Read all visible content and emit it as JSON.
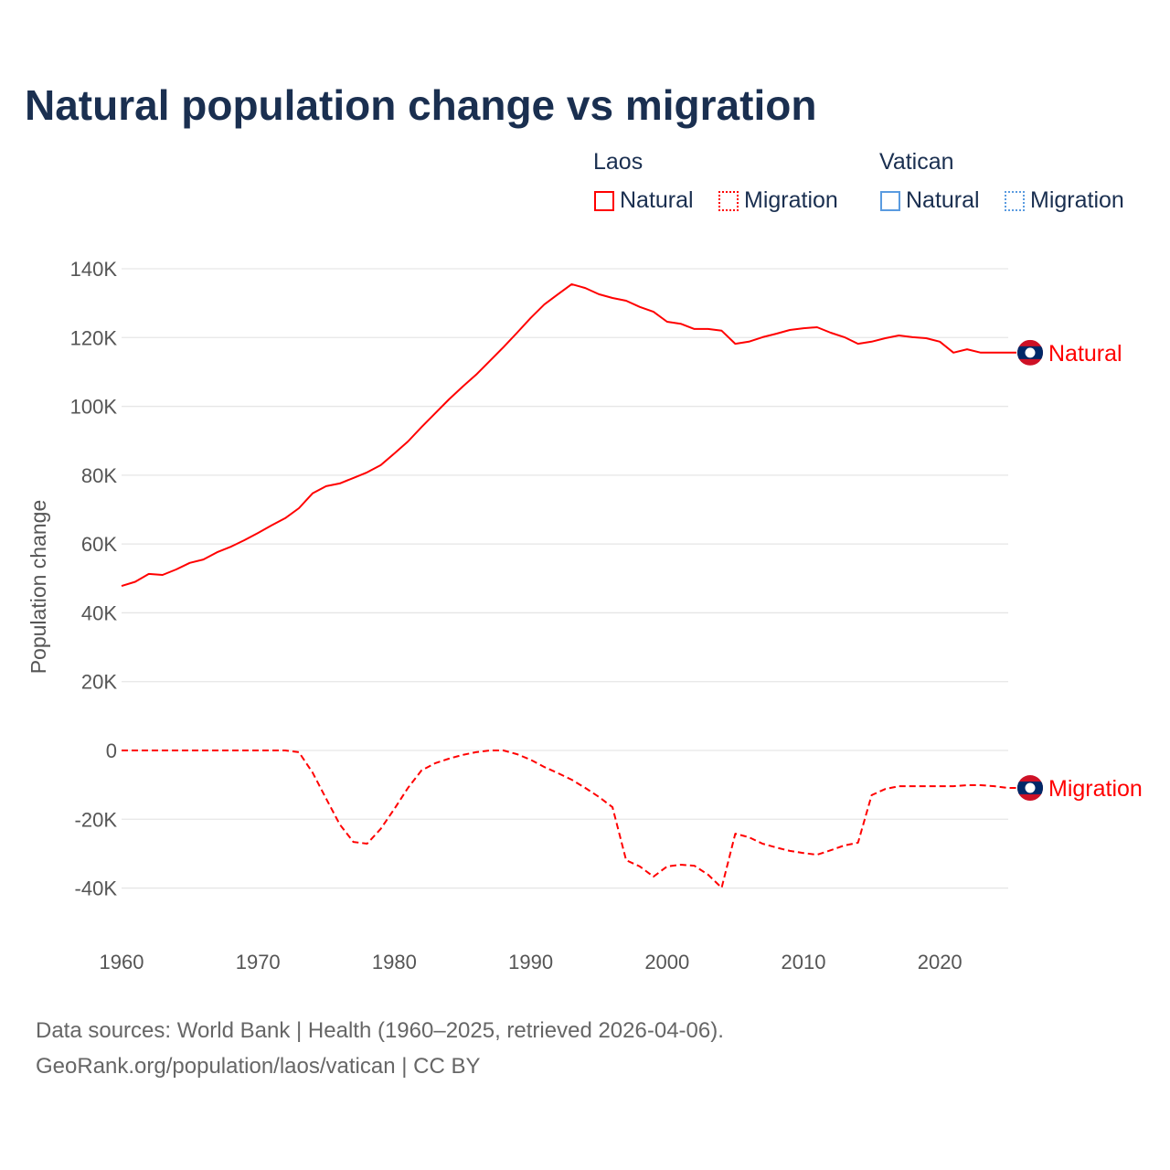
{
  "title": "Natural population change vs migration",
  "legend": {
    "groups": [
      {
        "name": "Laos",
        "color": "#ff0000",
        "items": [
          "Natural",
          "Migration"
        ]
      },
      {
        "name": "Vatican",
        "color": "#4a90d9",
        "items": [
          "Natural",
          "Migration"
        ]
      }
    ]
  },
  "source_lines": [
    "Data sources: World Bank | Health (1960–2025, retrieved 2026-04-06).",
    "GeoRank.org/population/laos/vatican | CC BY"
  ],
  "chart_data": {
    "type": "line",
    "title": "Natural population change vs migration",
    "xlabel": "",
    "ylabel": "Population change",
    "xlim": [
      1960,
      2025
    ],
    "ylim": [
      -50000,
      140000
    ],
    "xticks": [
      1960,
      1970,
      1980,
      1990,
      2000,
      2010,
      2020
    ],
    "yticks": [
      {
        "v": 140000,
        "l": "140K"
      },
      {
        "v": 120000,
        "l": "120K"
      },
      {
        "v": 100000,
        "l": "100K"
      },
      {
        "v": 80000,
        "l": "80K"
      },
      {
        "v": 60000,
        "l": "60K"
      },
      {
        "v": 40000,
        "l": "40K"
      },
      {
        "v": 20000,
        "l": "20K"
      },
      {
        "v": 0,
        "l": "0"
      },
      {
        "v": -20000,
        "l": "-20K"
      },
      {
        "v": -40000,
        "l": "-40K"
      }
    ],
    "grid": true,
    "legend_position": "top-right",
    "x_start": 1960,
    "series": [
      {
        "name": "Natural",
        "country": "Laos",
        "color": "#ff0000",
        "dash": "solid",
        "end_label": "Natural",
        "values": [
          47800,
          49000,
          51300,
          51000,
          52600,
          54500,
          55500,
          57600,
          59200,
          61100,
          63200,
          65400,
          67500,
          70400,
          74700,
          76800,
          77600,
          79200,
          80800,
          82900,
          86300,
          89800,
          94000,
          98000,
          102000,
          105700,
          109200,
          113200,
          117200,
          121400,
          125700,
          129600,
          132600,
          135500,
          134400,
          132600,
          131500,
          130700,
          128900,
          127500,
          124600,
          124000,
          122500,
          122500,
          122000,
          118200,
          118800,
          120100,
          121100,
          122200,
          122700,
          123000,
          121400,
          120100,
          118200,
          118800,
          119800,
          120600,
          120100,
          119800,
          118800,
          115600,
          116600,
          115600,
          115600,
          115600
        ]
      },
      {
        "name": "Migration",
        "country": "Laos",
        "color": "#ff0000",
        "dash": "dashed",
        "end_label": "Migration",
        "values": [
          0,
          0,
          0,
          0,
          0,
          0,
          0,
          0,
          0,
          0,
          0,
          0,
          0,
          -500,
          -6400,
          -14000,
          -21500,
          -26600,
          -27100,
          -22800,
          -17000,
          -10900,
          -5800,
          -3700,
          -2400,
          -1300,
          -500,
          0,
          0,
          -1100,
          -2700,
          -4800,
          -6600,
          -8500,
          -10900,
          -13500,
          -16500,
          -31900,
          -33700,
          -36700,
          -33700,
          -33200,
          -33500,
          -36100,
          -39900,
          -24200,
          -25200,
          -27100,
          -28200,
          -29200,
          -29800,
          -30300,
          -29000,
          -27600,
          -26800,
          -13000,
          -11200,
          -10400,
          -10400,
          -10400,
          -10400,
          -10400,
          -10100,
          -10100,
          -10400,
          -10900
        ]
      }
    ]
  }
}
